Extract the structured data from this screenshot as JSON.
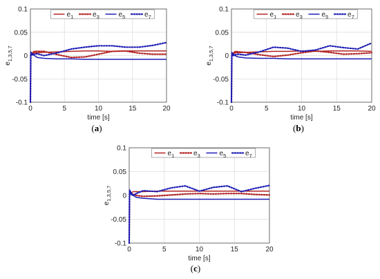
{
  "colors": {
    "e1": "#b22222",
    "e3": "#b22222",
    "e5": "#1c1cb4",
    "e7": "#1c1cb4"
  },
  "chart_data": [
    {
      "type": "line",
      "panel_label": "(a)",
      "xlabel": "time [s]",
      "ylabel": "e1,3,5,7",
      "xlim": [
        0,
        20
      ],
      "ylim": [
        -0.1,
        0.1
      ],
      "xticks": [
        "0",
        "5",
        "10",
        "15",
        "20"
      ],
      "yticks": [
        "0.1",
        "0.05",
        "0",
        "-0.05",
        "-0.1"
      ],
      "grid": true,
      "legend_placement": "top",
      "series": [
        {
          "name": "e1",
          "style": "solid",
          "x": [
            0,
            0.05,
            0.3,
            0.6,
            1.0,
            2,
            4,
            6,
            8,
            10,
            12,
            14,
            16,
            18,
            20
          ],
          "y": [
            -0.1,
            0.0,
            0.004,
            0.006,
            0.006,
            0.007,
            0.008,
            0.009,
            0.01,
            0.01,
            0.009,
            0.01,
            0.01,
            0.01,
            0.01
          ]
        },
        {
          "name": "e3",
          "style": "dotted",
          "x": [
            0,
            0.05,
            0.3,
            0.6,
            1.0,
            2,
            4,
            6,
            8,
            10,
            12,
            14,
            16,
            18,
            20
          ],
          "y": [
            -0.1,
            0.0,
            0.006,
            0.009,
            0.009,
            0.009,
            0.002,
            -0.004,
            -0.003,
            0.003,
            0.009,
            0.01,
            0.005,
            0.003,
            0.003
          ]
        },
        {
          "name": "e5",
          "style": "solid",
          "x": [
            0,
            0.05,
            0.3,
            0.6,
            1.0,
            2,
            4,
            6,
            8,
            10,
            12,
            14,
            16,
            18,
            20
          ],
          "y": [
            -0.1,
            0.008,
            0.004,
            0.0,
            -0.004,
            -0.006,
            -0.007,
            -0.007,
            -0.008,
            -0.008,
            -0.008,
            -0.008,
            -0.008,
            -0.008,
            -0.008
          ]
        },
        {
          "name": "e7",
          "style": "dotted",
          "x": [
            0,
            0.05,
            0.3,
            0.6,
            1.0,
            2,
            4,
            6,
            8,
            10,
            12,
            14,
            16,
            18,
            20
          ],
          "y": [
            -0.1,
            0.003,
            0.001,
            0.003,
            0.004,
            0.0,
            0.006,
            0.014,
            0.018,
            0.021,
            0.021,
            0.018,
            0.018,
            0.022,
            0.028
          ]
        }
      ]
    },
    {
      "type": "line",
      "panel_label": "(b)",
      "xlabel": "time [s]",
      "ylabel": "e1,3,5,7",
      "xlim": [
        0,
        20
      ],
      "ylim": [
        -0.1,
        0.1
      ],
      "xticks": [
        "0",
        "5",
        "10",
        "15",
        "20"
      ],
      "yticks": [
        "0.1",
        "0.05",
        "0",
        "-0.05",
        "-0.1"
      ],
      "grid": true,
      "legend_placement": "top",
      "series": [
        {
          "name": "e1",
          "style": "solid",
          "x": [
            0,
            0.05,
            0.3,
            0.6,
            1.0,
            2,
            4,
            6,
            8,
            10,
            12,
            14,
            16,
            18,
            20
          ],
          "y": [
            -0.1,
            0.0,
            0.004,
            0.006,
            0.006,
            0.007,
            0.008,
            0.009,
            0.009,
            0.01,
            0.009,
            0.01,
            0.01,
            0.01,
            0.009
          ]
        },
        {
          "name": "e3",
          "style": "dotted",
          "x": [
            0,
            0.05,
            0.3,
            0.6,
            1.0,
            2,
            4,
            6,
            8,
            10,
            12,
            14,
            16,
            18,
            20
          ],
          "y": [
            -0.1,
            0.0,
            0.006,
            0.009,
            0.008,
            0.007,
            0.002,
            -0.002,
            0.001,
            0.006,
            0.01,
            0.007,
            0.003,
            0.004,
            0.006
          ]
        },
        {
          "name": "e5",
          "style": "solid",
          "x": [
            0,
            0.05,
            0.3,
            0.6,
            1.0,
            2,
            4,
            6,
            8,
            10,
            12,
            14,
            16,
            18,
            20
          ],
          "y": [
            -0.1,
            0.007,
            0.003,
            -0.001,
            -0.003,
            -0.005,
            -0.006,
            -0.006,
            -0.007,
            -0.007,
            -0.007,
            -0.007,
            -0.007,
            -0.007,
            -0.007
          ]
        },
        {
          "name": "e7",
          "style": "dotted",
          "x": [
            0,
            0.05,
            0.3,
            0.6,
            1.0,
            2,
            4,
            6,
            8,
            10,
            12,
            14,
            16,
            18,
            20
          ],
          "y": [
            -0.1,
            0.002,
            0.0,
            0.002,
            0.003,
            0.001,
            0.008,
            0.018,
            0.016,
            0.009,
            0.012,
            0.021,
            0.017,
            0.014,
            0.027
          ]
        }
      ]
    },
    {
      "type": "line",
      "panel_label": "(c)",
      "xlabel": "time [s]",
      "ylabel": "e1,3,5,7",
      "xlim": [
        0,
        20
      ],
      "ylim": [
        -0.1,
        0.1
      ],
      "xticks": [
        "0",
        "5",
        "10",
        "15",
        "20"
      ],
      "yticks": [
        "0.1",
        "0.05",
        "0",
        "-0.05",
        "-0.1"
      ],
      "grid": true,
      "legend_placement": "top",
      "series": [
        {
          "name": "e1",
          "style": "solid",
          "x": [
            0,
            0.05,
            0.3,
            0.6,
            1.0,
            2,
            4,
            6,
            8,
            10,
            12,
            14,
            16,
            18,
            20
          ],
          "y": [
            -0.1,
            0.002,
            0.006,
            0.008,
            0.008,
            0.008,
            0.009,
            0.009,
            0.009,
            0.009,
            0.009,
            0.009,
            0.009,
            0.009,
            0.009
          ]
        },
        {
          "name": "e3",
          "style": "dotted",
          "x": [
            0,
            0.05,
            0.3,
            0.6,
            1.0,
            2,
            4,
            6,
            8,
            10,
            12,
            14,
            16,
            18,
            20
          ],
          "y": [
            -0.1,
            0.003,
            0.004,
            0.002,
            0.0,
            -0.002,
            -0.001,
            0.001,
            0.003,
            0.004,
            0.003,
            0.004,
            0.004,
            0.002,
            0.001
          ]
        },
        {
          "name": "e5",
          "style": "solid",
          "x": [
            0,
            0.05,
            0.3,
            0.6,
            1.0,
            2,
            4,
            6,
            8,
            10,
            12,
            14,
            16,
            18,
            20
          ],
          "y": [
            -0.1,
            0.012,
            0.006,
            0.0,
            -0.004,
            -0.006,
            -0.008,
            -0.008,
            -0.008,
            -0.008,
            -0.008,
            -0.008,
            -0.008,
            -0.008,
            -0.008
          ]
        },
        {
          "name": "e7",
          "style": "dotted",
          "x": [
            0,
            0.05,
            0.3,
            0.6,
            1.0,
            2,
            4,
            6,
            8,
            10,
            12,
            14,
            16,
            18,
            20
          ],
          "y": [
            -0.1,
            0.008,
            0.002,
            0.0,
            0.004,
            0.01,
            0.008,
            0.016,
            0.02,
            0.009,
            0.017,
            0.02,
            0.008,
            0.015,
            0.021
          ]
        }
      ]
    }
  ]
}
